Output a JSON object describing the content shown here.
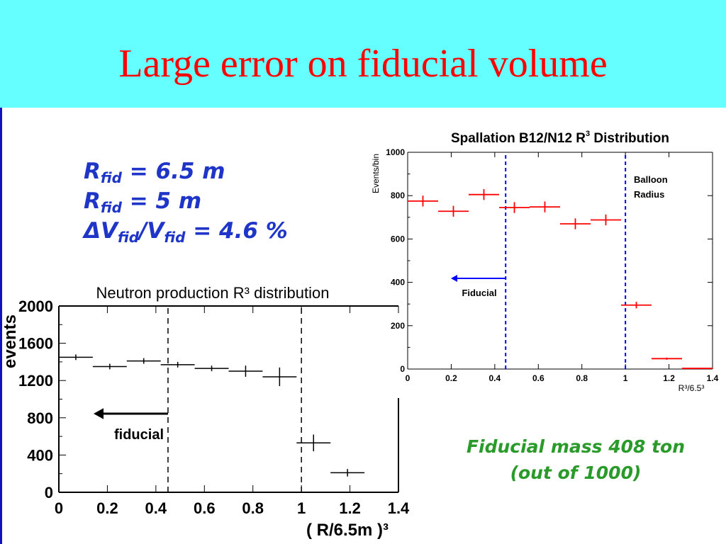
{
  "slide": {
    "title": "Large error on fiducial volume",
    "r_lines": [
      {
        "sym": "R",
        "sub": "fid",
        "rest": " = 6.5 m"
      },
      {
        "sym": "R",
        "sub": "fid",
        "rest": " = 5 m"
      },
      {
        "sym": "ΔV",
        "sub": "fid",
        "mid": "/V",
        "sub2": "fid",
        "rest": " = 4.6 %"
      }
    ],
    "fiducial_mass_line1": "Fiducial mass 408 ton",
    "fiducial_mass_line2": "(out of 1000)",
    "colors": {
      "header_bg": "#66ffff",
      "title": "#ff0000",
      "r_text": "#1f35c8",
      "mass_text": "#2a9a2a",
      "spallation_markers": "#ff0000",
      "spallation_lines": "#0000ff"
    }
  },
  "chart_data": [
    {
      "type": "scatter",
      "title": "Neutron production R³ distribution",
      "xlabel": "( R/6.5m )³",
      "ylabel": "events",
      "xlim": [
        0,
        1.4
      ],
      "ylim": [
        0,
        2000
      ],
      "xticks": [
        "0",
        "0.2",
        "0.4",
        "0.6",
        "0.8",
        "1",
        "1.2",
        "1.4"
      ],
      "yticks": [
        "0",
        "400",
        "800",
        "1200",
        "1600",
        "2000"
      ],
      "series": [
        {
          "x": [
            0.07,
            0.21,
            0.35,
            0.49,
            0.63,
            0.77,
            0.91,
            1.05,
            1.19
          ],
          "y": [
            1450,
            1350,
            1410,
            1370,
            1330,
            1300,
            1240,
            530,
            210
          ],
          "xerr": 0.07,
          "yerr": [
            30,
            30,
            30,
            30,
            30,
            60,
            100,
            90,
            40
          ]
        }
      ],
      "vlines": [
        0.45,
        1.0
      ],
      "annotation": "fiducial"
    },
    {
      "type": "scatter",
      "title": "Spallation B12/N12 R",
      "title_sup": "3",
      "title_end": " Distribution",
      "xlabel": "R³/6.5³",
      "ylabel": "Events/bin",
      "xlim": [
        0,
        1.4
      ],
      "ylim": [
        0,
        1000
      ],
      "xticks": [
        "0",
        "0.2",
        "0.4",
        "0.6",
        "0.8",
        "1",
        "1.2",
        "1.4"
      ],
      "yticks": [
        "0",
        "200",
        "400",
        "600",
        "800",
        "1000"
      ],
      "series": [
        {
          "x": [
            0.07,
            0.21,
            0.35,
            0.49,
            0.63,
            0.77,
            0.91,
            1.05,
            1.19,
            1.33
          ],
          "y": [
            775,
            728,
            805,
            745,
            748,
            670,
            688,
            295,
            48,
            3
          ],
          "xerr": 0.07,
          "yerr": [
            25,
            25,
            25,
            25,
            25,
            25,
            25,
            15,
            5,
            2
          ]
        }
      ],
      "vlines": [
        0.45,
        1.0
      ],
      "annotations": [
        "Fiducial",
        "Balloon",
        "Radius"
      ]
    }
  ]
}
